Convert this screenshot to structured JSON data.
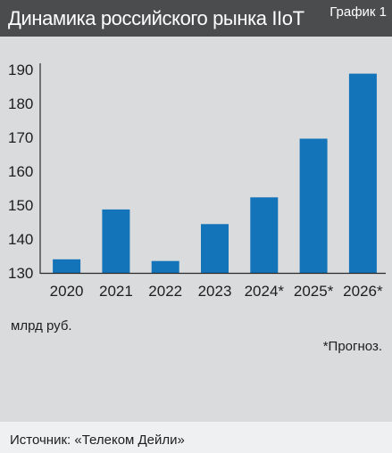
{
  "header": {
    "title": "Динамика российского рынка IIoT",
    "label": "График 1"
  },
  "chart_data": {
    "type": "bar",
    "categories": [
      "2020",
      "2021",
      "2022",
      "2023",
      "2024*",
      "2025*",
      "2026*"
    ],
    "values": [
      134,
      148.7,
      133.5,
      144.4,
      152.3,
      169.6,
      188.8
    ],
    "ylim": [
      130,
      190
    ],
    "yticks": [
      190,
      180,
      170,
      160,
      150,
      140,
      130
    ],
    "grid": false,
    "xlabel": "",
    "ylabel": "",
    "colors": {
      "bar": "#1474b9",
      "axis": "#2b2b2b",
      "text": "#1e1e1e"
    }
  },
  "unit": "млрд руб.",
  "note": "*Прогноз.",
  "source": "Источник: «Телеком Дейли»"
}
